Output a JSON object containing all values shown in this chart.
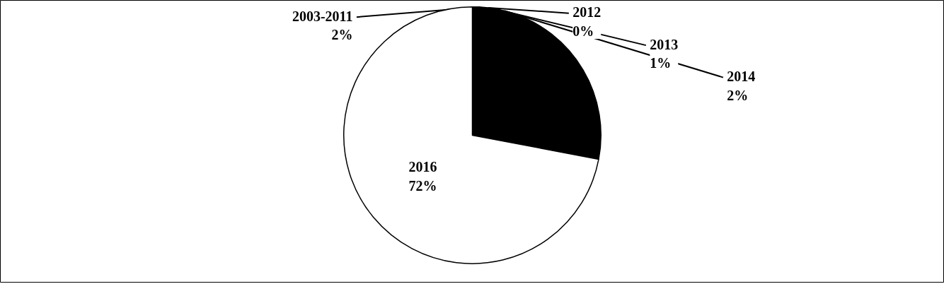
{
  "chart_data": {
    "type": "pie",
    "categories": [
      "2003-2011",
      "2012",
      "2013",
      "2014",
      null,
      "2016"
    ],
    "values": [
      2,
      0,
      1,
      2,
      23,
      72
    ],
    "value_labels": [
      "2%",
      "0%",
      "1%",
      "2%",
      null,
      "72%"
    ],
    "colors": [
      "#000000",
      "#000000",
      "#000000",
      "#000000",
      "#000000",
      "#ffffff"
    ]
  }
}
